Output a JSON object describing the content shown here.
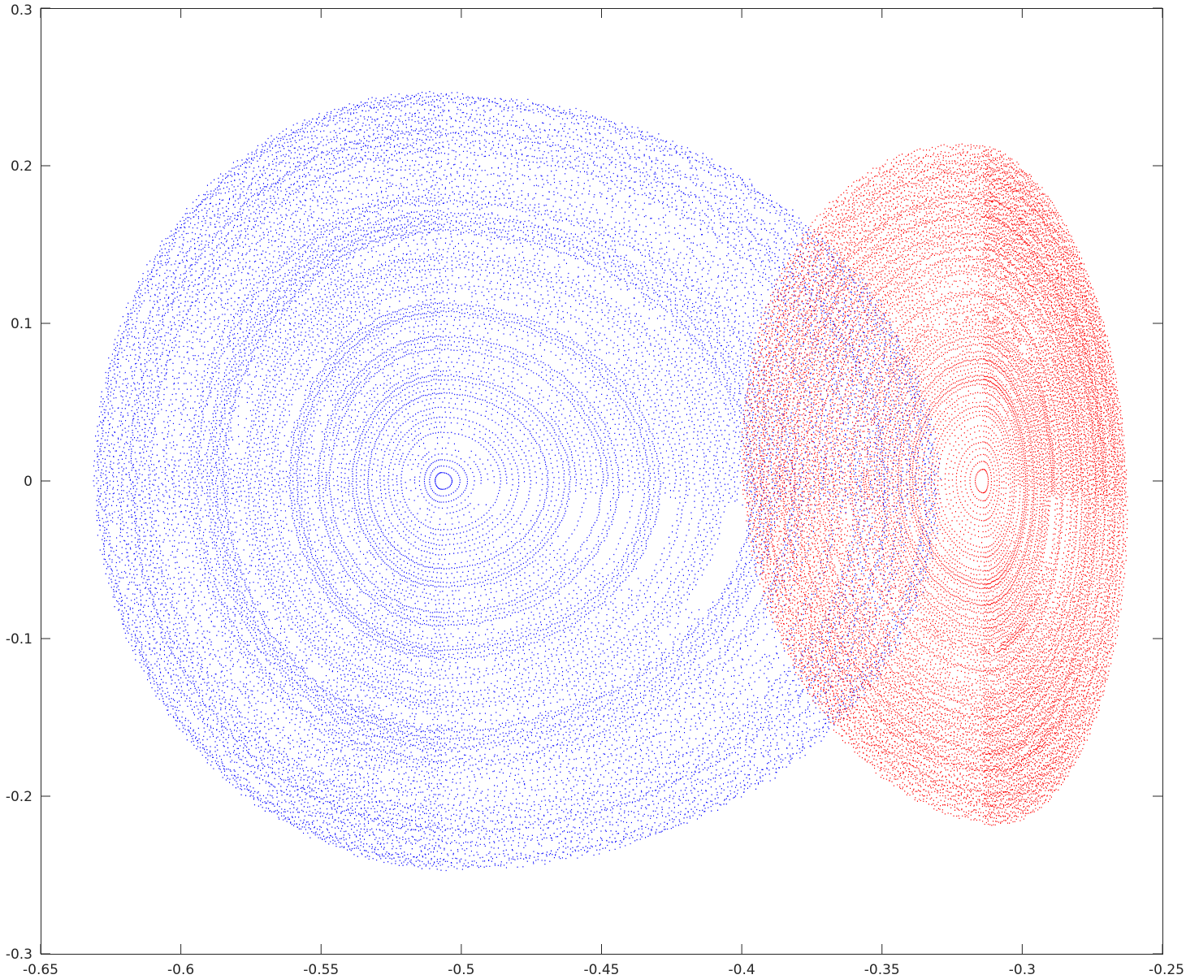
{
  "chart_data": {
    "type": "scatter",
    "title": "",
    "xlabel": "",
    "ylabel": "",
    "xlim": [
      -0.65,
      -0.25
    ],
    "ylim": [
      -0.3,
      0.3
    ],
    "grid": false,
    "x_ticks": [
      -0.65,
      -0.6,
      -0.55,
      -0.5,
      -0.45,
      -0.4,
      -0.35,
      -0.3,
      -0.25
    ],
    "y_ticks": [
      -0.3,
      -0.2,
      -0.1,
      0,
      0.1,
      0.2,
      0.3
    ],
    "x_tick_labels": [
      "-0.65",
      "-0.6",
      "-0.55",
      "-0.5",
      "-0.45",
      "-0.4",
      "-0.35",
      "-0.3",
      "-0.25"
    ],
    "y_tick_labels": [
      "-0.3",
      "-0.2",
      "-0.1",
      "0",
      "0.1",
      "0.2",
      "0.3"
    ],
    "series": [
      {
        "color": "#0000ff",
        "center": [
          -0.507,
          0.0
        ],
        "x_extent": [
          -0.626,
          -0.335
        ],
        "y_extent": [
          -0.255,
          0.255
        ]
      },
      {
        "color": "#ff0000",
        "center": [
          -0.314,
          0.0
        ],
        "x_extent": [
          -0.398,
          -0.264
        ],
        "y_extent": [
          -0.22,
          0.215
        ]
      }
    ]
  }
}
